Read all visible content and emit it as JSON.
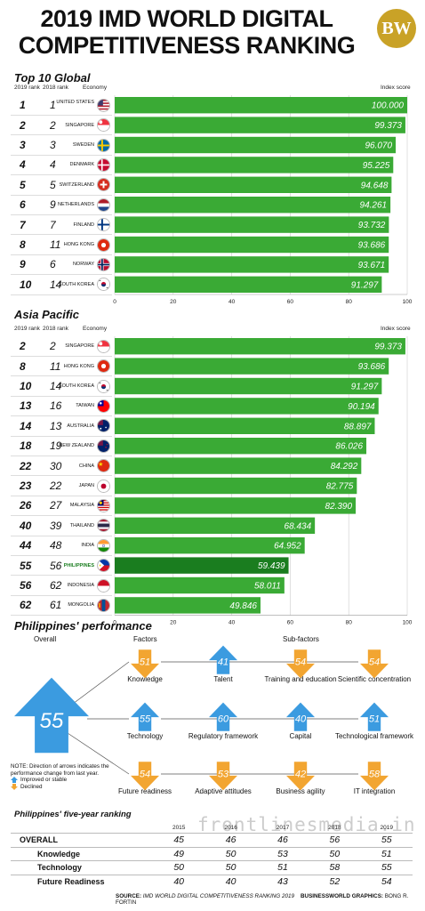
{
  "title_line1": "2019 IMD WORLD DIGITAL",
  "title_line2": "COMPETITIVENESS RANKING",
  "logo": "BW",
  "colors": {
    "bar": "#3aaa35",
    "bar_highlight": "#1a7d1f",
    "improved": "#3b9be0",
    "declined": "#f2a531"
  },
  "chart_data": [
    {
      "type": "bar",
      "title": "Top 10 Global",
      "headers": {
        "rank2019": "2019 rank",
        "rank2018": "2018 rank",
        "economy": "Economy",
        "value": "Index score"
      },
      "xlim": [
        0,
        100
      ],
      "ticks": [
        "0",
        "20",
        "40",
        "60",
        "80",
        "100"
      ],
      "rows": [
        {
          "r19": "1",
          "r18": "1",
          "economy": "UNITED STATES",
          "flag": "us",
          "value": 100.0,
          "label": "100.000"
        },
        {
          "r19": "2",
          "r18": "2",
          "economy": "SINGAPORE",
          "flag": "sg",
          "value": 99.373,
          "label": "99.373"
        },
        {
          "r19": "3",
          "r18": "3",
          "economy": "SWEDEN",
          "flag": "se",
          "value": 96.07,
          "label": "96.070"
        },
        {
          "r19": "4",
          "r18": "4",
          "economy": "DENMARK",
          "flag": "dk",
          "value": 95.225,
          "label": "95.225"
        },
        {
          "r19": "5",
          "r18": "5",
          "economy": "SWITZERLAND",
          "flag": "ch",
          "value": 94.648,
          "label": "94.648"
        },
        {
          "r19": "6",
          "r18": "9",
          "economy": "NETHERLANDS",
          "flag": "nl",
          "value": 94.261,
          "label": "94.261"
        },
        {
          "r19": "7",
          "r18": "7",
          "economy": "FINLAND",
          "flag": "fi",
          "value": 93.732,
          "label": "93.732"
        },
        {
          "r19": "8",
          "r18": "11",
          "economy": "HONG KONG",
          "flag": "hk",
          "value": 93.686,
          "label": "93.686"
        },
        {
          "r19": "9",
          "r18": "6",
          "economy": "NORWAY",
          "flag": "no",
          "value": 93.671,
          "label": "93.671"
        },
        {
          "r19": "10",
          "r18": "14",
          "economy": "SOUTH KOREA",
          "flag": "kr",
          "value": 91.297,
          "label": "91.297"
        }
      ]
    },
    {
      "type": "bar",
      "title": "Asia Pacific",
      "headers": {
        "rank2019": "2019 rank",
        "rank2018": "2018 rank",
        "economy": "Economy",
        "value": "Index score"
      },
      "xlim": [
        0,
        100
      ],
      "ticks": [
        "0",
        "20",
        "40",
        "60",
        "80",
        "100"
      ],
      "rows": [
        {
          "r19": "2",
          "r18": "2",
          "economy": "SINGAPORE",
          "flag": "sg",
          "value": 99.373,
          "label": "99.373"
        },
        {
          "r19": "8",
          "r18": "11",
          "economy": "HONG KONG",
          "flag": "hk",
          "value": 93.686,
          "label": "93.686"
        },
        {
          "r19": "10",
          "r18": "14",
          "economy": "SOUTH KOREA",
          "flag": "kr",
          "value": 91.297,
          "label": "91.297"
        },
        {
          "r19": "13",
          "r18": "16",
          "economy": "TAIWAN",
          "flag": "tw",
          "value": 90.194,
          "label": "90.194"
        },
        {
          "r19": "14",
          "r18": "13",
          "economy": "AUSTRALIA",
          "flag": "au",
          "value": 88.897,
          "label": "88.897"
        },
        {
          "r19": "18",
          "r18": "19",
          "economy": "NEW ZEALAND",
          "flag": "nz",
          "value": 86.026,
          "label": "86.026"
        },
        {
          "r19": "22",
          "r18": "30",
          "economy": "CHINA",
          "flag": "cn",
          "value": 84.292,
          "label": "84.292"
        },
        {
          "r19": "23",
          "r18": "22",
          "economy": "JAPAN",
          "flag": "jp",
          "value": 82.775,
          "label": "82.775"
        },
        {
          "r19": "26",
          "r18": "27",
          "economy": "MALAYSIA",
          "flag": "my",
          "value": 82.39,
          "label": "82.390"
        },
        {
          "r19": "40",
          "r18": "39",
          "economy": "THAILAND",
          "flag": "th",
          "value": 68.434,
          "label": "68.434"
        },
        {
          "r19": "44",
          "r18": "48",
          "economy": "INDIA",
          "flag": "in",
          "value": 64.952,
          "label": "64.952"
        },
        {
          "r19": "55",
          "r18": "56",
          "economy": "PHILIPPINES",
          "flag": "ph",
          "value": 59.439,
          "label": "59.439",
          "highlight": true
        },
        {
          "r19": "56",
          "r18": "62",
          "economy": "INDONESIA",
          "flag": "id",
          "value": 58.011,
          "label": "58.011"
        },
        {
          "r19": "62",
          "r18": "61",
          "economy": "MONGOLIA",
          "flag": "mn",
          "value": 49.846,
          "label": "49.846"
        }
      ]
    }
  ],
  "performance": {
    "title": "Philippines' performance",
    "overall_label": "Overall",
    "overall_value": "55",
    "factors_label": "Factors",
    "subfactors_label": "Sub-factors",
    "rows": [
      [
        {
          "value": "51",
          "label": "Knowledge",
          "dir": "declined"
        },
        {
          "value": "41",
          "label": "Talent",
          "dir": "improved"
        },
        {
          "value": "54",
          "label": "Training and education",
          "dir": "declined"
        },
        {
          "value": "54",
          "label": "Scientific concentration",
          "dir": "declined"
        }
      ],
      [
        {
          "value": "55",
          "label": "Technology",
          "dir": "improved"
        },
        {
          "value": "60",
          "label": "Regulatory framework",
          "dir": "improved"
        },
        {
          "value": "40",
          "label": "Capital",
          "dir": "improved"
        },
        {
          "value": "51",
          "label": "Technological framework",
          "dir": "improved"
        }
      ],
      [
        {
          "value": "54",
          "label": "Future readiness",
          "dir": "declined"
        },
        {
          "value": "53",
          "label": "Adaptive attitudes",
          "dir": "declined"
        },
        {
          "value": "42",
          "label": "Business agility",
          "dir": "declined"
        },
        {
          "value": "58",
          "label": "IT integration",
          "dir": "declined"
        }
      ]
    ],
    "note": "NOTE: Direction of arrows indicates the performance change from last year.",
    "legend_improved": "Improved or stable",
    "legend_declined": "Declined"
  },
  "five_year": {
    "title": "Philippines' five-year ranking",
    "years": [
      "2015",
      "2016",
      "2017",
      "2018",
      "2019"
    ],
    "rows": [
      {
        "label": "OVERALL",
        "values": [
          "45",
          "46",
          "46",
          "56",
          "55"
        ]
      },
      {
        "label": "Knowledge",
        "values": [
          "49",
          "50",
          "53",
          "50",
          "51"
        ]
      },
      {
        "label": "Technology",
        "values": [
          "50",
          "50",
          "51",
          "58",
          "55"
        ]
      },
      {
        "label": "Future Readiness",
        "values": [
          "40",
          "40",
          "43",
          "52",
          "54"
        ]
      }
    ]
  },
  "source": {
    "source_label": "SOURCE:",
    "source_text": "IMD WORLD DIGITAL COMPETITIVENESS RANKING 2019",
    "graphics_label": "BUSINESSWORLD GRAPHICS:",
    "graphics_text": "BONG R. FORTIN"
  },
  "watermark": "frontlinesmedia.in"
}
